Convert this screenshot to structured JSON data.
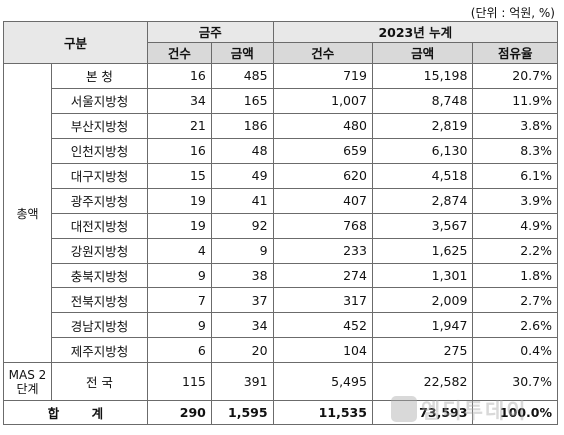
{
  "unit_note": "(단위 : 억원, %)",
  "headers": {
    "category": "구분",
    "this_week": "금주",
    "ytd": "2023년 누계",
    "count": "건수",
    "amount": "금액",
    "share": "점유율"
  },
  "groups": {
    "total_amount": "총액",
    "mas_stage2": "MAS 2단계"
  },
  "rows": [
    {
      "name": "본  청",
      "week_count": "16",
      "week_amount": "485",
      "ytd_count": "719",
      "ytd_amount": "15,198",
      "share": "20.7%"
    },
    {
      "name": "서울지방청",
      "week_count": "34",
      "week_amount": "165",
      "ytd_count": "1,007",
      "ytd_amount": "8,748",
      "share": "11.9%"
    },
    {
      "name": "부산지방청",
      "week_count": "21",
      "week_amount": "186",
      "ytd_count": "480",
      "ytd_amount": "2,819",
      "share": "3.8%"
    },
    {
      "name": "인천지방청",
      "week_count": "16",
      "week_amount": "48",
      "ytd_count": "659",
      "ytd_amount": "6,130",
      "share": "8.3%"
    },
    {
      "name": "대구지방청",
      "week_count": "15",
      "week_amount": "49",
      "ytd_count": "620",
      "ytd_amount": "4,518",
      "share": "6.1%"
    },
    {
      "name": "광주지방청",
      "week_count": "19",
      "week_amount": "41",
      "ytd_count": "407",
      "ytd_amount": "2,874",
      "share": "3.9%"
    },
    {
      "name": "대전지방청",
      "week_count": "19",
      "week_amount": "92",
      "ytd_count": "768",
      "ytd_amount": "3,567",
      "share": "4.9%"
    },
    {
      "name": "강원지방청",
      "week_count": "4",
      "week_amount": "9",
      "ytd_count": "233",
      "ytd_amount": "1,625",
      "share": "2.2%"
    },
    {
      "name": "충북지방청",
      "week_count": "9",
      "week_amount": "38",
      "ytd_count": "274",
      "ytd_amount": "1,301",
      "share": "1.8%"
    },
    {
      "name": "전북지방청",
      "week_count": "7",
      "week_amount": "37",
      "ytd_count": "317",
      "ytd_amount": "2,009",
      "share": "2.7%"
    },
    {
      "name": "경남지방청",
      "week_count": "9",
      "week_amount": "34",
      "ytd_count": "452",
      "ytd_amount": "1,947",
      "share": "2.6%"
    },
    {
      "name": "제주지방청",
      "week_count": "6",
      "week_amount": "20",
      "ytd_count": "104",
      "ytd_amount": "275",
      "share": "0.4%"
    }
  ],
  "mas_row": {
    "name": "전  국",
    "week_count": "115",
    "week_amount": "391",
    "ytd_count": "5,495",
    "ytd_amount": "22,582",
    "share": "30.7%"
  },
  "total_row": {
    "name": "합  계",
    "week_count": "290",
    "week_amount": "1,595",
    "ytd_count": "11,535",
    "ytd_amount": "73,593",
    "share": "100.0%"
  },
  "watermark": "엠디투데이"
}
